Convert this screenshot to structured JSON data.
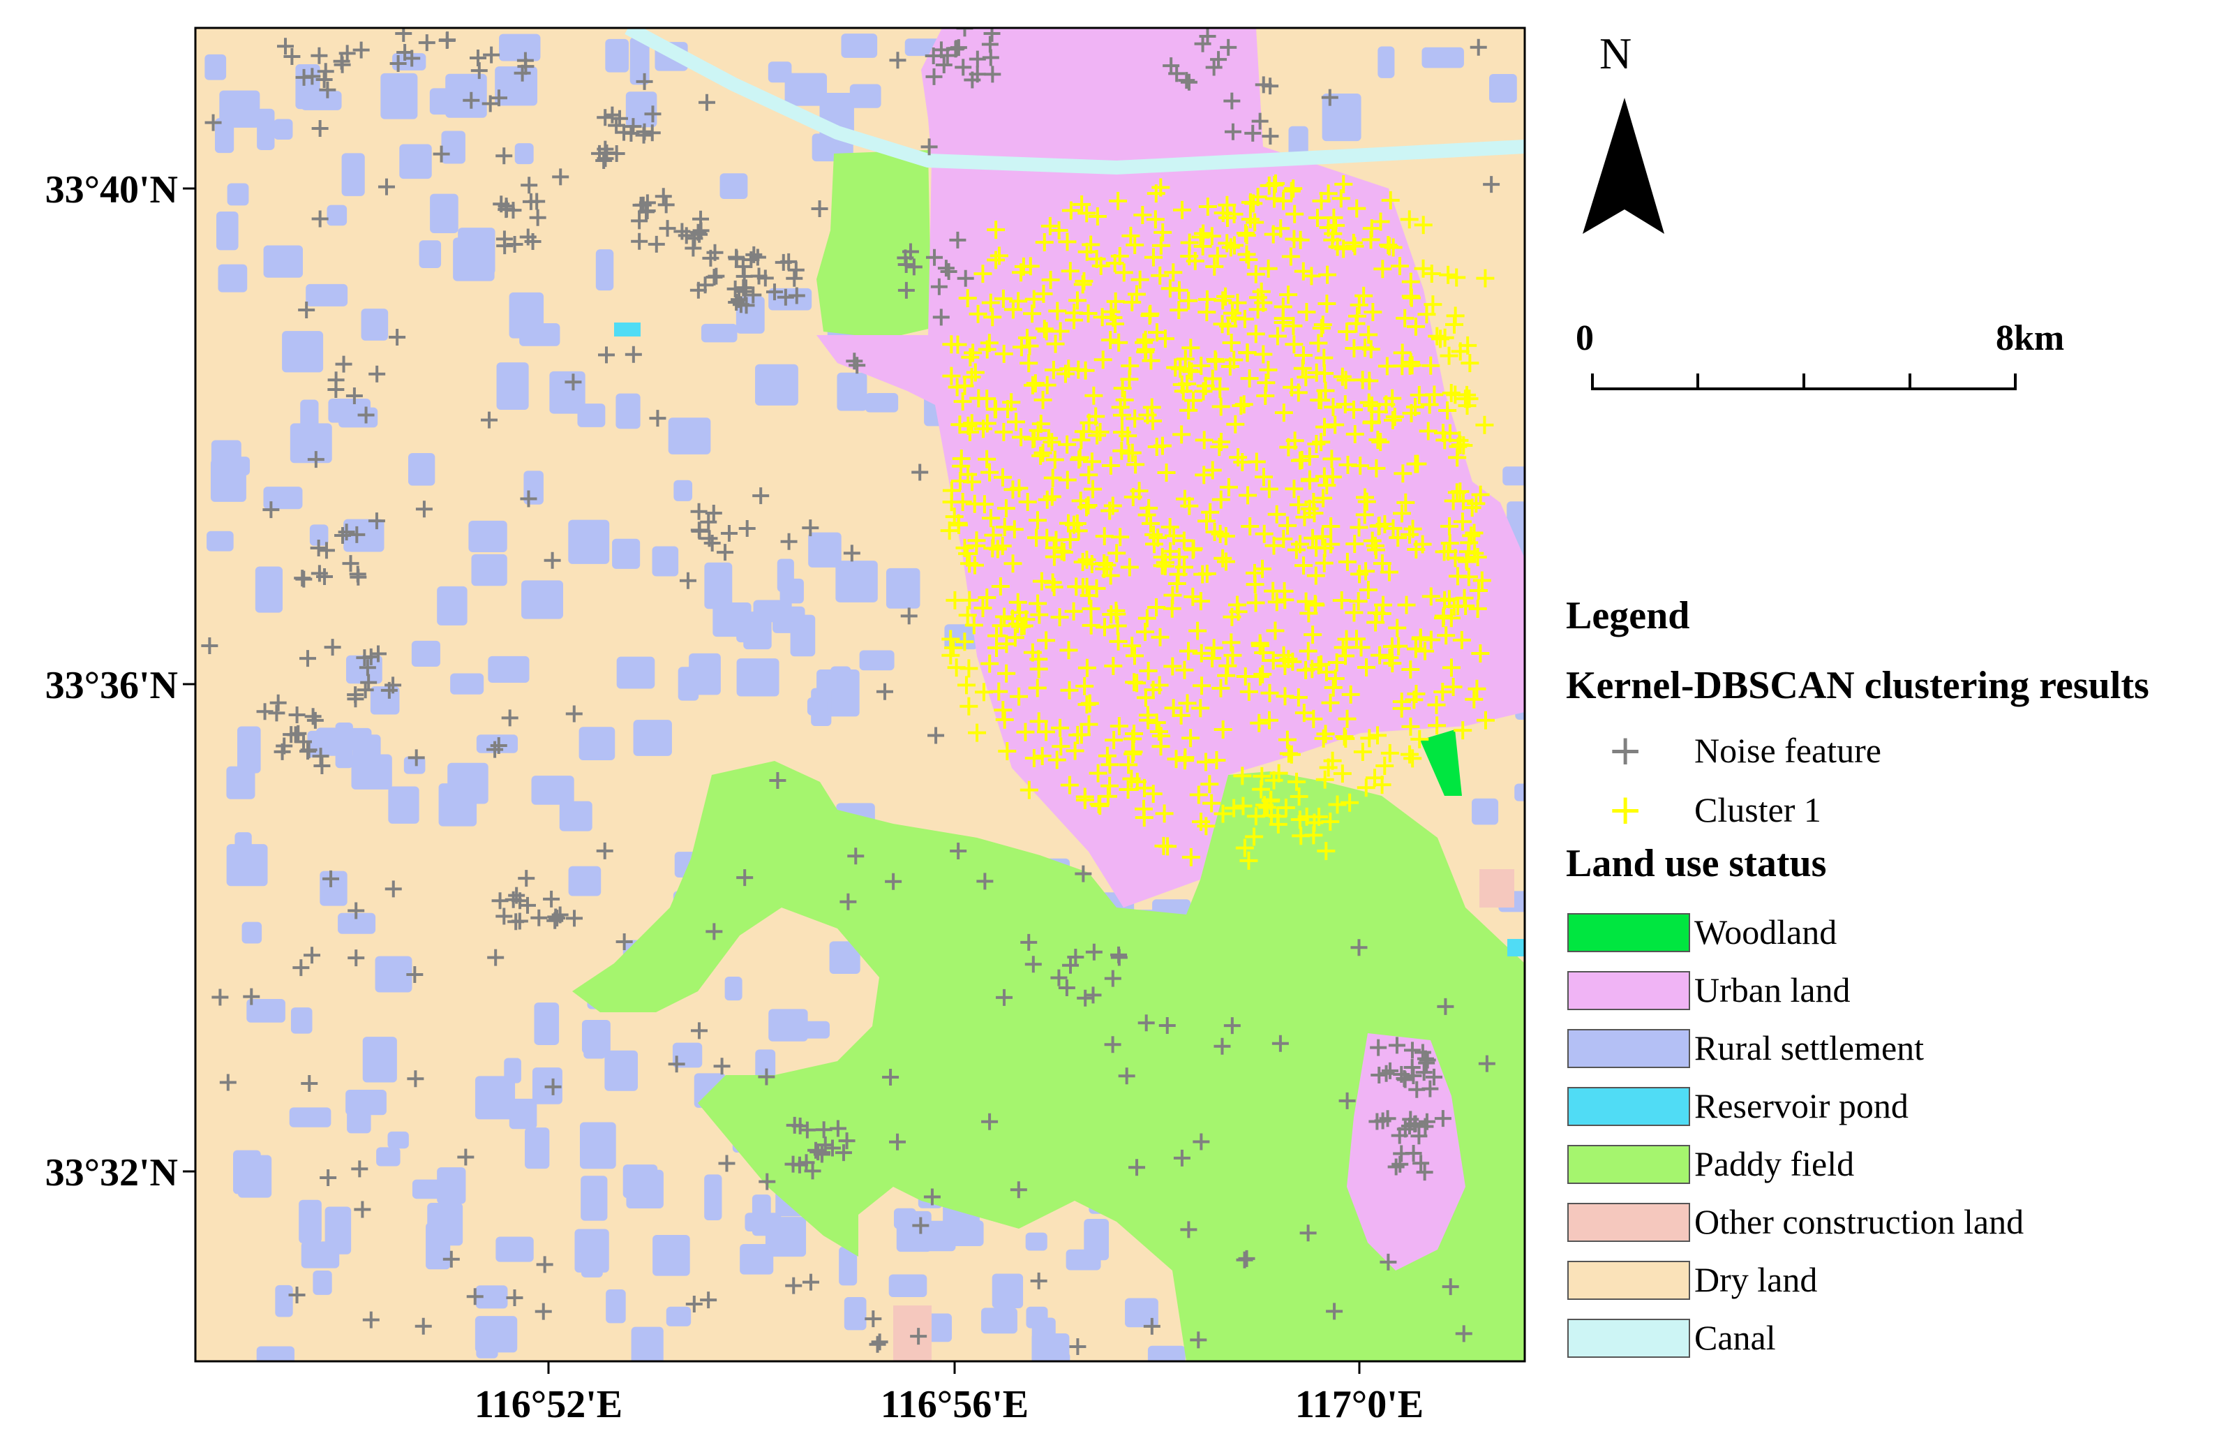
{
  "map": {
    "lat_labels": [
      "33°40'N",
      "33°36'N",
      "33°32'N"
    ],
    "lon_labels": [
      "116°52'E",
      "116°56'E",
      "117°0'E"
    ]
  },
  "north_arrow": {
    "label": "N"
  },
  "scale_bar": {
    "start": "0",
    "end": "8km"
  },
  "legend": {
    "title": "Legend",
    "cluster_heading": "Kernel-DBSCAN clustering results",
    "cluster_items": [
      {
        "label": "Noise feature",
        "color": "#808080"
      },
      {
        "label": "Cluster 1",
        "color": "#ffff00"
      }
    ],
    "landuse_heading": "Land use status",
    "landuse_items": [
      {
        "label": "Woodland",
        "color": "#00e640"
      },
      {
        "label": "Urban land",
        "color": "#f0b4f5"
      },
      {
        "label": "Rural settlement",
        "color": "#b4c0f5"
      },
      {
        "label": "Reservoir pond",
        "color": "#50dcf5"
      },
      {
        "label": "Paddy field",
        "color": "#a5f56e"
      },
      {
        "label": "Other construction land",
        "color": "#f5c8be"
      },
      {
        "label": "Dry land",
        "color": "#fae2b9"
      },
      {
        "label": "Canal",
        "color": "#cdf5f5"
      }
    ]
  }
}
